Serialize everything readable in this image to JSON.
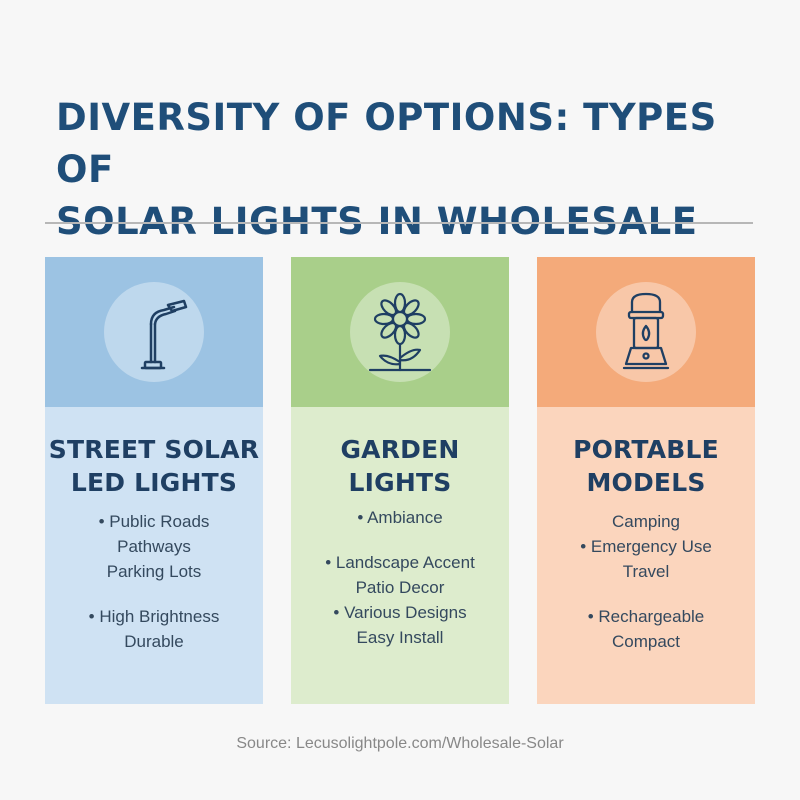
{
  "title": {
    "line1": "DIVERSITY OF OPTIONS: TYPES OF",
    "line2": "SOLAR LIGHTS IN WHOLESALE"
  },
  "colors": {
    "title": "#1f4e79",
    "street_top": "#9cc3e3",
    "street_bottom": "#cfe2f3",
    "garden_top": "#a9cf8a",
    "garden_bottom": "#ddeccd",
    "portable_top": "#f4aa7a",
    "portable_bottom": "#fbd5bd"
  },
  "cards": {
    "street": {
      "icon": "street-lamp-icon",
      "title_line1": "STREET SOLAR",
      "title_line2": "LED LIGHTS",
      "items": [
        "• Public Roads",
        "Pathways",
        "Parking Lots",
        "• High Brightness",
        "Durable"
      ]
    },
    "garden": {
      "icon": "flower-icon",
      "title_line1": "GARDEN",
      "title_line2": "LIGHTS",
      "items": [
        "• Ambiance",
        "• Landscape Accent",
        "Patio Decor",
        "• Various Designs",
        "Easy Install"
      ]
    },
    "portable": {
      "icon": "lantern-icon",
      "title_line1": "PORTABLE",
      "title_line2": "MODELS",
      "items": [
        "Camping",
        "• Emergency Use",
        "Travel",
        "• Rechargeable",
        "Compact"
      ]
    }
  },
  "source": "Source: Lecusolightpole.com/Wholesale-Solar"
}
